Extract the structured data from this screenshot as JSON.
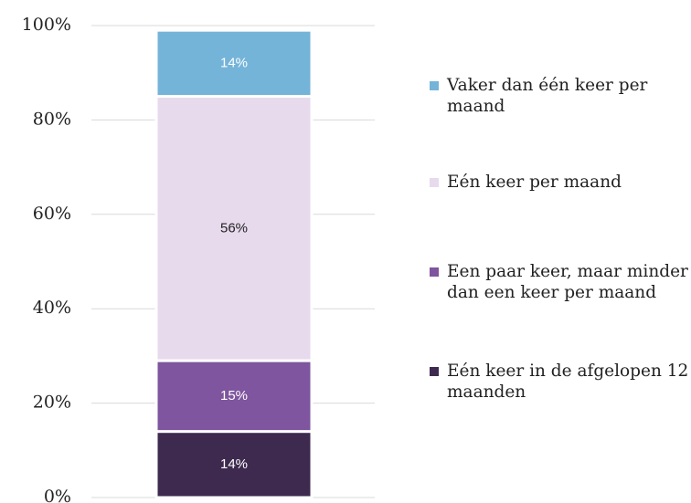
{
  "chart_data": {
    "type": "stacked_bar",
    "categories": [
      null
    ],
    "series": [
      {
        "name": "Eén keer in de afgelopen 12 maanden",
        "color": "#3e2a4f",
        "values": [
          14
        ],
        "value_labels": [
          "14%"
        ]
      },
      {
        "name": "Een paar keer, maar minder dan een keer per maand",
        "color": "#7e559e",
        "values": [
          15
        ],
        "value_labels": [
          "15%"
        ]
      },
      {
        "name": "Eén keer per maand",
        "color": "#e7daec",
        "values": [
          56
        ],
        "value_labels": [
          "56%"
        ]
      },
      {
        "name": "Vaker dan één keer per maand",
        "color": "#74b4d9",
        "values": [
          14
        ],
        "value_labels": [
          "14%"
        ]
      }
    ],
    "ylim": [
      0,
      100
    ],
    "yticks": [
      {
        "value": 0,
        "label": "0%"
      },
      {
        "value": 20,
        "label": "20%"
      },
      {
        "value": 40,
        "label": "40%"
      },
      {
        "value": 60,
        "label": "60%"
      },
      {
        "value": 80,
        "label": "80%"
      },
      {
        "value": 100,
        "label": "100%"
      }
    ],
    "grid": true,
    "legend": "right"
  }
}
